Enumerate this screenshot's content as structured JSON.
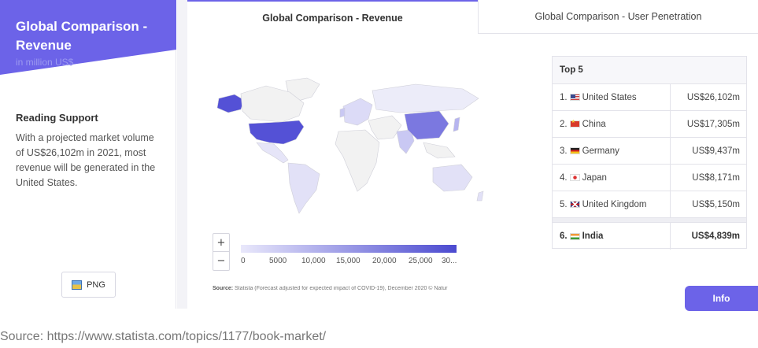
{
  "sidebar": {
    "title": "Global Comparison - Revenue",
    "subtitle": "in million US$",
    "accent_color": "#6c63e8",
    "reading_support_title": "Reading Support",
    "reading_support_text": "With a projected market volume of US$26,102m in 2021, most revenue will be generated in the United States.",
    "png_button_label": "PNG",
    "png_icon": "image-icon"
  },
  "tabs": [
    {
      "label": "Global Comparison - Revenue",
      "active": true
    },
    {
      "label": "Global Comparison - User Penetration",
      "active": false
    }
  ],
  "map": {
    "zoom_in_label": "+",
    "zoom_out_label": "−",
    "legend_ticks": [
      "0",
      "5000",
      "10,000",
      "15,000",
      "20,000",
      "25,000",
      "30..."
    ],
    "legend_colors": [
      "#e9e8fb",
      "#4b4ad0"
    ],
    "highlight_colors": {
      "usa": "#5451d6",
      "china": "#7b78e0",
      "other_shaded": "#dcdbf7",
      "unshaded": "#f2f2f2"
    },
    "source_label": "Source:",
    "source_text": "Statista (Forecast adjusted for expected impact of COVID-19), December 2020 © Natur"
  },
  "top5": {
    "header": "Top 5",
    "rows": [
      {
        "rank": "1.",
        "flag": "flag-us",
        "country": "United States",
        "value": "US$26,102m"
      },
      {
        "rank": "2.",
        "flag": "flag-cn",
        "country": "China",
        "value": "US$17,305m"
      },
      {
        "rank": "3.",
        "flag": "flag-de",
        "country": "Germany",
        "value": "US$9,437m"
      },
      {
        "rank": "4.",
        "flag": "flag-jp",
        "country": "Japan",
        "value": "US$8,171m"
      },
      {
        "rank": "5.",
        "flag": "flag-uk",
        "country": "United Kingdom",
        "value": "US$5,150m"
      }
    ],
    "highlight_row": {
      "rank": "6.",
      "flag": "flag-in",
      "country": "India",
      "value": "US$4,839m"
    }
  },
  "info_button_label": "Info",
  "caption": "Source: https://www.statista.com/topics/1177/book-market/"
}
